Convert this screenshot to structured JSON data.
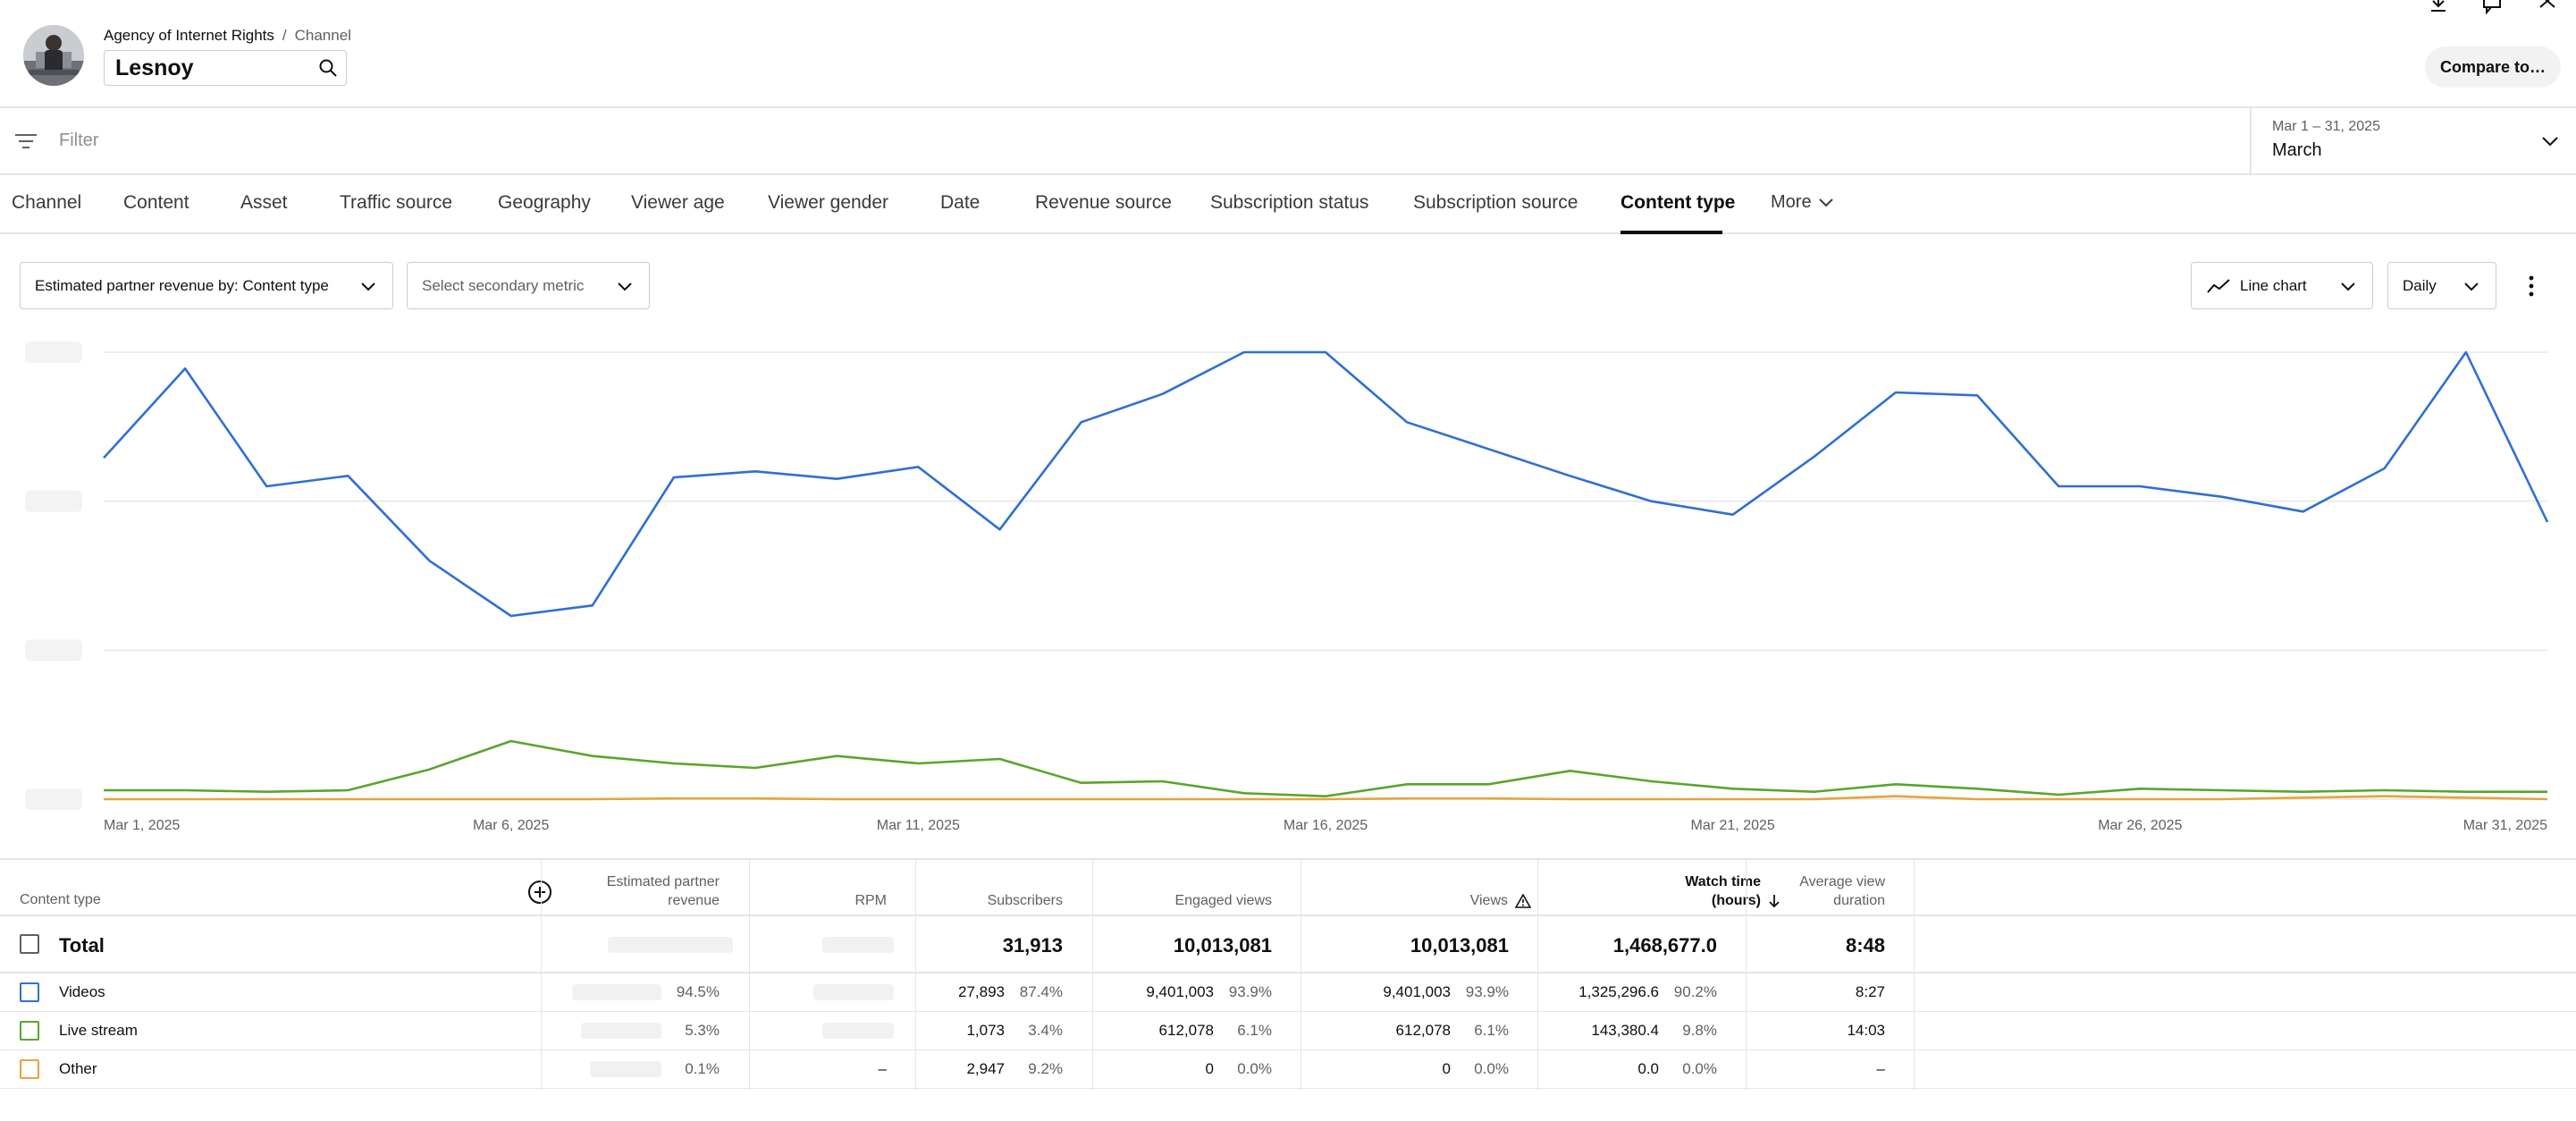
{
  "header": {
    "breadcrumb": [
      "Agency of Internet Rights",
      "Channel"
    ],
    "channel_name": "Lesnoy",
    "compare_button": "Compare to…"
  },
  "filter": {
    "placeholder": "Filter",
    "date_range": "Mar 1 – 31, 2025",
    "date_label": "March"
  },
  "tabs": [
    "Channel",
    "Content",
    "Asset",
    "Traffic source",
    "Geography",
    "Viewer age",
    "Viewer gender",
    "Date",
    "Revenue source",
    "Subscription status",
    "Subscription source",
    "Content type"
  ],
  "active_tab": "Content type",
  "more_label": "More",
  "controls": {
    "primary_metric": "Estimated partner revenue by: Content type",
    "secondary_metric": "Select secondary metric",
    "chart_type": "Line chart",
    "granularity": "Daily"
  },
  "chart_data": {
    "type": "line",
    "x_tick_labels": [
      "Mar 1, 2025",
      "Mar 6, 2025",
      "Mar 11, 2025",
      "Mar 16, 2025",
      "Mar 21, 2025",
      "Mar 26, 2025",
      "Mar 31, 2025"
    ],
    "x": [
      1,
      2,
      3,
      4,
      5,
      6,
      7,
      8,
      9,
      10,
      11,
      12,
      13,
      14,
      15,
      16,
      17,
      18,
      19,
      20,
      21,
      22,
      23,
      24,
      25,
      26,
      27,
      28,
      29,
      30,
      31
    ],
    "ylim": [
      0,
      3
    ],
    "y_tick_labels_obscured": true,
    "grid": true,
    "series": [
      {
        "name": "Videos",
        "color": "#2f6fd6",
        "values": [
          2.29,
          2.89,
          2.1,
          2.17,
          1.6,
          1.23,
          1.3,
          2.16,
          2.2,
          2.15,
          2.23,
          1.81,
          2.53,
          2.72,
          3.0,
          3.0,
          2.53,
          2.35,
          2.17,
          2.0,
          1.91,
          2.3,
          2.73,
          2.71,
          2.1,
          2.1,
          2.03,
          1.93,
          2.22,
          3.0,
          1.86
        ]
      },
      {
        "name": "Live stream",
        "color": "#5aa52d",
        "values": [
          0.06,
          0.06,
          0.05,
          0.06,
          0.2,
          0.39,
          0.29,
          0.24,
          0.21,
          0.29,
          0.24,
          0.27,
          0.11,
          0.12,
          0.04,
          0.02,
          0.1,
          0.1,
          0.19,
          0.12,
          0.07,
          0.05,
          0.1,
          0.07,
          0.03,
          0.07,
          0.06,
          0.05,
          0.06,
          0.05,
          0.05
        ]
      },
      {
        "name": "Other",
        "color": "#e8a33c",
        "values": [
          0.0,
          0.0,
          0.0,
          0.0,
          0.0,
          0.0,
          0.0,
          0.005,
          0.005,
          0.0,
          0.0,
          0.0,
          0.0,
          0.0,
          0.0,
          0.0,
          0.005,
          0.005,
          0.0,
          0.0,
          0.0,
          0.0,
          0.02,
          0.0,
          0.0,
          0.0,
          0.0,
          0.01,
          0.02,
          0.01,
          0.0
        ]
      }
    ]
  },
  "table": {
    "first_col_header": "Content type",
    "columns": [
      {
        "key": "revenue",
        "label": [
          "Estimated partner",
          "revenue"
        ]
      },
      {
        "key": "rpm",
        "label": [
          "RPM"
        ]
      },
      {
        "key": "subscribers",
        "label": [
          "Subscribers"
        ]
      },
      {
        "key": "engaged",
        "label": [
          "Engaged views"
        ]
      },
      {
        "key": "views",
        "label": [
          "Views"
        ]
      },
      {
        "key": "watch",
        "label": [
          "Watch time",
          "(hours)"
        ]
      },
      {
        "key": "avd",
        "label": [
          "Average view",
          "duration"
        ]
      }
    ],
    "total": {
      "label": "Total",
      "subscribers": "31,913",
      "engaged": "10,013,081",
      "views": "10,013,081",
      "watch": "1,468,677.0",
      "avd": "8:48"
    },
    "rows": [
      {
        "label": "Videos",
        "color": "#2f6fd6",
        "revenue_pct": "94.5%",
        "rpm": "",
        "subscribers": "27,893",
        "subscribers_pct": "87.4%",
        "engaged": "9,401,003",
        "engaged_pct": "93.9%",
        "views": "9,401,003",
        "views_pct": "93.9%",
        "watch": "1,325,296.6",
        "watch_pct": "90.2%",
        "avd": "8:27"
      },
      {
        "label": "Live stream",
        "color": "#5aa52d",
        "revenue_pct": "5.3%",
        "rpm": "",
        "subscribers": "1,073",
        "subscribers_pct": "3.4%",
        "engaged": "612,078",
        "engaged_pct": "6.1%",
        "views": "612,078",
        "views_pct": "6.1%",
        "watch": "143,380.4",
        "watch_pct": "9.8%",
        "avd": "14:03"
      },
      {
        "label": "Other",
        "color": "#e8a33c",
        "revenue_pct": "0.1%",
        "rpm": "–",
        "subscribers": "2,947",
        "subscribers_pct": "9.2%",
        "engaged": "0",
        "engaged_pct": "0.0%",
        "views": "0",
        "views_pct": "0.0%",
        "watch": "0.0",
        "watch_pct": "0.0%",
        "avd": "–"
      }
    ]
  }
}
